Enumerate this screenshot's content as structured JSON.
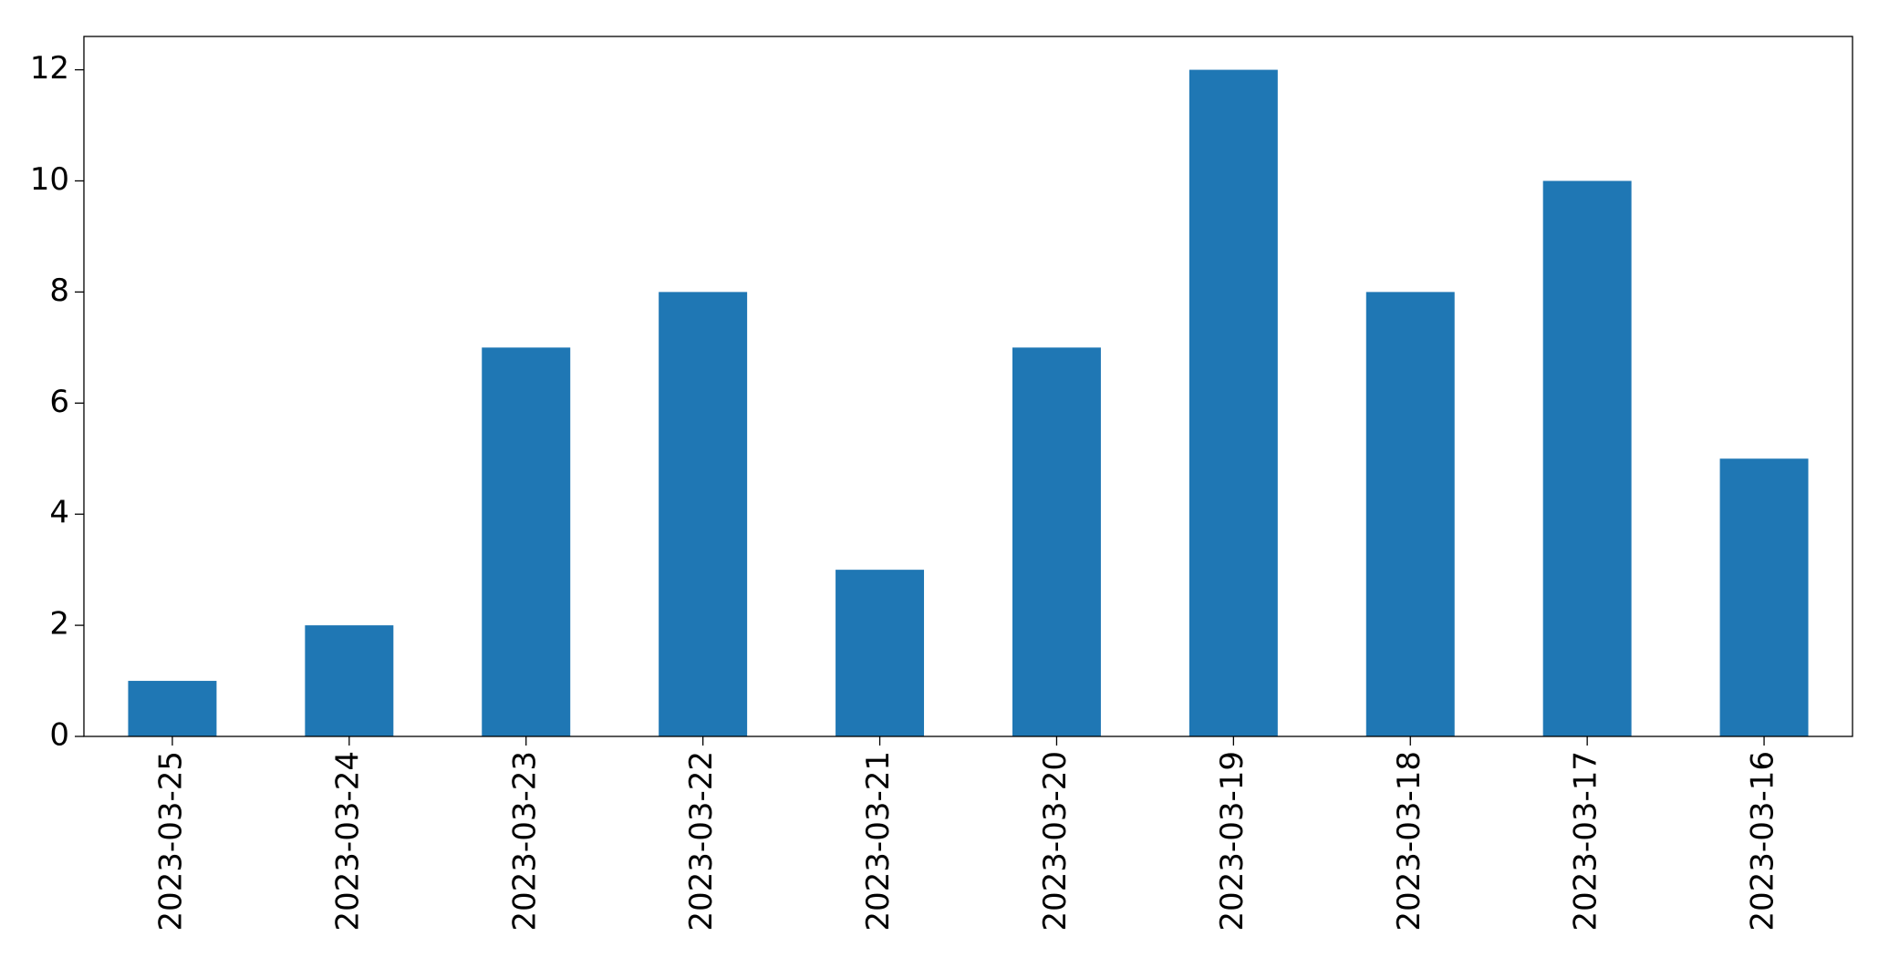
{
  "chart_data": {
    "type": "bar",
    "categories": [
      "2023-03-25",
      "2023-03-24",
      "2023-03-23",
      "2023-03-22",
      "2023-03-21",
      "2023-03-20",
      "2023-03-19",
      "2023-03-18",
      "2023-03-17",
      "2023-03-16"
    ],
    "values": [
      1,
      2,
      7,
      8,
      3,
      7,
      12,
      8,
      10,
      5
    ],
    "color": "#1f77b4",
    "ylim": [
      0,
      12.6
    ],
    "yticks": [
      0,
      2,
      4,
      6,
      8,
      10,
      12
    ],
    "grid": false
  }
}
